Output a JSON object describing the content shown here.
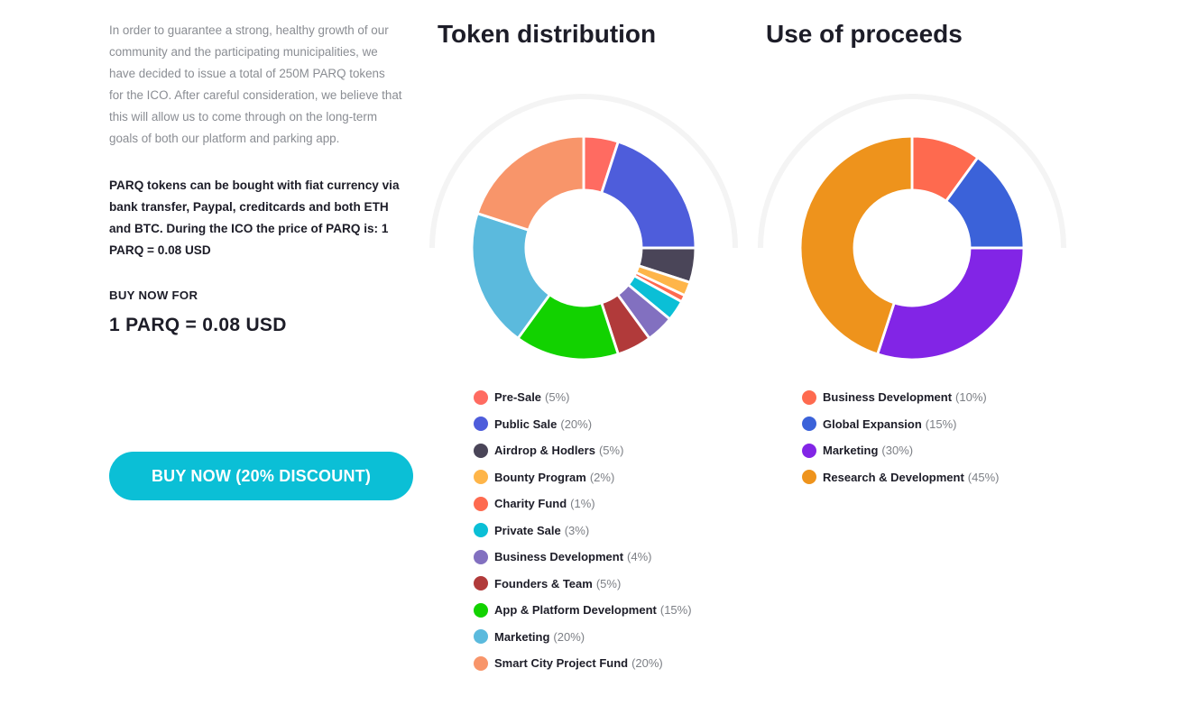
{
  "intro": {
    "paragraph": "In order to guarantee a strong, healthy growth of our community and the participating municipalities, we have decided to issue a total of 250M PARQ tokens for the ICO. After careful consideration, we believe that this will allow us to come through on the long-term goals of both our platform and parking app.",
    "payment_text": "PARQ tokens can be bought with fiat currency via bank transfer, Paypal, creditcards and both ETH and BTC. During the ICO the price of PARQ is: 1 PARQ = 0.08 USD",
    "buy_label": "BUY NOW FOR",
    "price": "1 PARQ = 0.08 USD",
    "cta_label": "BUY NOW (20% DISCOUNT)"
  },
  "chart_data": [
    {
      "type": "pie",
      "title": "Token distribution",
      "slices": [
        {
          "name": "Pre-Sale",
          "value": 5,
          "label": "(5%)",
          "color": "#ff6b61"
        },
        {
          "name": "Public Sale",
          "value": 20,
          "label": "(20%)",
          "color": "#4e5ddb"
        },
        {
          "name": "Airdrop & Hodlers",
          "value": 5,
          "label": "(5%)",
          "color": "#4a4558"
        },
        {
          "name": "Bounty Program",
          "value": 2,
          "label": "(2%)",
          "color": "#feb549"
        },
        {
          "name": "Charity Fund",
          "value": 1,
          "label": "(1%)",
          "color": "#fe6a4f"
        },
        {
          "name": "Private Sale",
          "value": 3,
          "label": "(3%)",
          "color": "#0bbfd6"
        },
        {
          "name": "Business Development",
          "value": 4,
          "label": "(4%)",
          "color": "#8270c0"
        },
        {
          "name": "Founders & Team",
          "value": 5,
          "label": "(5%)",
          "color": "#b13a3a"
        },
        {
          "name": "App & Platform Development",
          "value": 15,
          "label": "(15%)",
          "color": "#12d200"
        },
        {
          "name": "Marketing",
          "value": 20,
          "label": "(20%)",
          "color": "#5bbadd"
        },
        {
          "name": "Smart City Project Fund",
          "value": 20,
          "label": "(20%)",
          "color": "#f8956a"
        }
      ]
    },
    {
      "type": "pie",
      "title": "Use of proceeds",
      "slices": [
        {
          "name": "Business Development",
          "value": 10,
          "label": "(10%)",
          "color": "#fe6a4f"
        },
        {
          "name": "Global Expansion",
          "value": 15,
          "label": "(15%)",
          "color": "#3b62d9"
        },
        {
          "name": "Marketing",
          "value": 30,
          "label": "(30%)",
          "color": "#8225e6"
        },
        {
          "name": "Research & Development",
          "value": 45,
          "label": "(45%)",
          "color": "#ee931c"
        }
      ]
    }
  ]
}
